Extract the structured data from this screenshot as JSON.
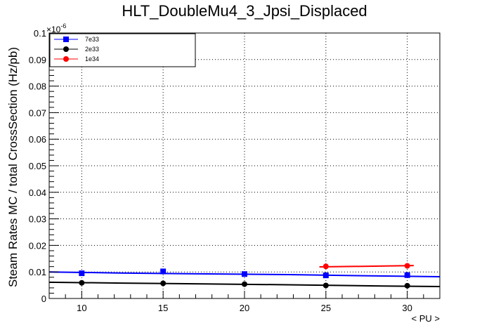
{
  "chart_data": {
    "type": "line",
    "title": "HLT_DoubleMu4_3_Jpsi_Displaced",
    "xlabel": "< PU >",
    "ylabel": "Steam Rates MC / total CrossSection (Hz/pb)",
    "y_exponent_label": "×10",
    "y_exponent_power": "-6",
    "xlim": [
      8,
      32
    ],
    "ylim": [
      0,
      0.1
    ],
    "x_ticks": [
      10,
      15,
      20,
      25,
      30
    ],
    "x_tick_labels": [
      "10",
      "15",
      "20",
      "25",
      "30"
    ],
    "y_ticks": [
      0,
      0.01,
      0.02,
      0.03,
      0.04,
      0.05,
      0.06,
      0.07,
      0.08,
      0.09,
      0.1
    ],
    "y_tick_labels": [
      "0",
      "0.01",
      "0.02",
      "0.03",
      "0.04",
      "0.05",
      "0.06",
      "0.07",
      "0.08",
      "0.09",
      "0.1"
    ],
    "grid": true,
    "legend_position": "top-left",
    "series": [
      {
        "name": "7e33",
        "color": "#0000ff",
        "marker": "square",
        "points": [
          {
            "x": 10,
            "y": 0.0095
          },
          {
            "x": 15,
            "y": 0.0102
          },
          {
            "x": 20,
            "y": 0.0092
          },
          {
            "x": 25,
            "y": 0.0087
          },
          {
            "x": 30,
            "y": 0.0088
          }
        ],
        "fit": [
          {
            "x": 8,
            "y": 0.01
          },
          {
            "x": 12.3,
            "y": 0.0096
          },
          {
            "x": 16.5,
            "y": 0.0093
          },
          {
            "x": 22.7,
            "y": 0.009
          },
          {
            "x": 26.9,
            "y": 0.0086
          },
          {
            "x": 32,
            "y": 0.0082
          }
        ]
      },
      {
        "name": "2e33",
        "color": "#000000",
        "marker": "circle",
        "points": [
          {
            "x": 10,
            "y": 0.0059
          },
          {
            "x": 15,
            "y": 0.0057
          },
          {
            "x": 20,
            "y": 0.0054
          },
          {
            "x": 25,
            "y": 0.0049
          },
          {
            "x": 30,
            "y": 0.0048
          }
        ],
        "fit": [
          {
            "x": 8,
            "y": 0.0061
          },
          {
            "x": 12.5,
            "y": 0.0058
          },
          {
            "x": 17.5,
            "y": 0.0055
          },
          {
            "x": 23.5,
            "y": 0.0051
          },
          {
            "x": 28.5,
            "y": 0.0047
          },
          {
            "x": 32,
            "y": 0.0045
          }
        ]
      },
      {
        "name": "1e34",
        "color": "#ff0000",
        "marker": "circle",
        "points": [
          {
            "x": 25,
            "y": 0.0121
          },
          {
            "x": 30,
            "y": 0.0123
          }
        ],
        "fit": [
          {
            "x": 24.6,
            "y": 0.0119
          },
          {
            "x": 28.3,
            "y": 0.0122
          },
          {
            "x": 30.4,
            "y": 0.0124
          }
        ]
      }
    ]
  }
}
